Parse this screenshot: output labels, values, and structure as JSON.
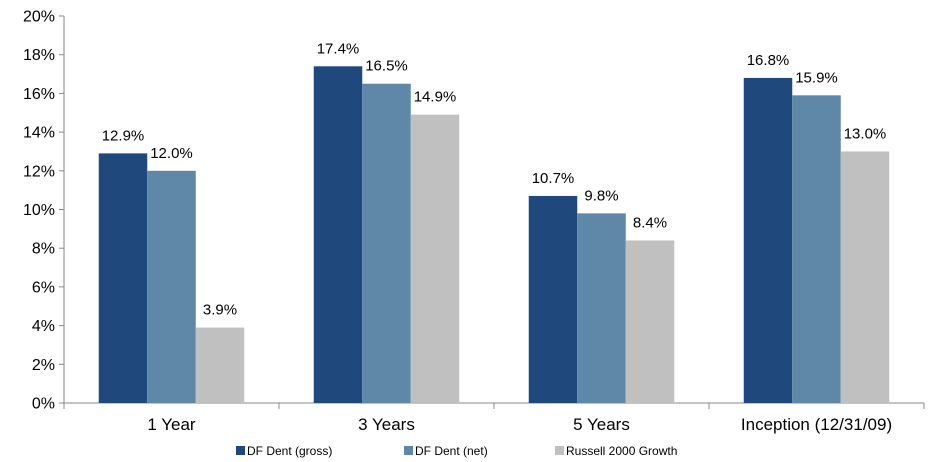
{
  "chart_data": {
    "type": "bar",
    "categories": [
      "1 Year",
      "3 Years",
      "5 Years",
      "Inception (12/31/09)"
    ],
    "series": [
      {
        "name": "DF Dent (gross)",
        "values": [
          12.9,
          17.4,
          10.7,
          16.8
        ],
        "color": "#1f497d"
      },
      {
        "name": "DF Dent (net)",
        "values": [
          12.0,
          16.5,
          9.8,
          15.9
        ],
        "color": "#5e87a8"
      },
      {
        "name": "Russell 2000 Growth",
        "values": [
          3.9,
          14.9,
          8.4,
          13.0
        ],
        "color": "#c0c0c0"
      }
    ],
    "data_labels": [
      [
        "12.9%",
        "17.4%",
        "10.7%",
        "16.8%"
      ],
      [
        "12.0%",
        "16.5%",
        "9.8%",
        "15.9%"
      ],
      [
        "3.9%",
        "14.9%",
        "8.4%",
        "13.0%"
      ]
    ],
    "yticks": [
      "0%",
      "2%",
      "4%",
      "6%",
      "8%",
      "10%",
      "12%",
      "14%",
      "16%",
      "18%",
      "20%"
    ],
    "ylim": [
      0,
      20
    ],
    "title": "",
    "xlabel": "",
    "ylabel": "",
    "grid": false,
    "legend_position": "bottom"
  }
}
